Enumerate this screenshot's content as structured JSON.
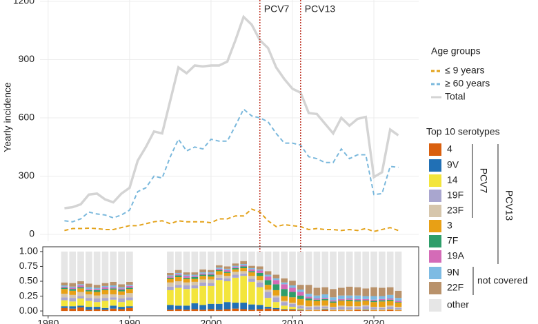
{
  "chart_data": [
    {
      "type": "line",
      "y_label": "Yearly incidence",
      "legend_title": "Age groups",
      "x": [
        1982,
        1983,
        1984,
        1985,
        1986,
        1987,
        1988,
        1989,
        1990,
        1991,
        1992,
        1993,
        1994,
        1995,
        1996,
        1997,
        1998,
        1999,
        2000,
        2001,
        2002,
        2003,
        2004,
        2005,
        2006,
        2007,
        2008,
        2009,
        2010,
        2011,
        2012,
        2013,
        2014,
        2015,
        2016,
        2017,
        2018,
        2019,
        2020,
        2021,
        2022,
        2023
      ],
      "series": [
        {
          "name": "≤ 9 years",
          "color": "#e3a21a",
          "dash": true,
          "values": [
            20,
            30,
            30,
            32,
            30,
            25,
            25,
            35,
            45,
            45,
            55,
            65,
            70,
            55,
            70,
            65,
            65,
            65,
            60,
            80,
            80,
            95,
            95,
            130,
            115,
            70,
            40,
            50,
            45,
            40,
            25,
            30,
            25,
            25,
            20,
            25,
            20,
            30,
            15,
            25,
            35,
            20
          ]
        },
        {
          "name": "≥ 60 years",
          "color": "#7ab8dc",
          "dash": true,
          "values": [
            70,
            65,
            80,
            115,
            105,
            100,
            85,
            100,
            125,
            220,
            240,
            300,
            290,
            400,
            490,
            430,
            450,
            440,
            490,
            480,
            480,
            560,
            645,
            610,
            600,
            580,
            520,
            470,
            470,
            460,
            400,
            390,
            370,
            370,
            440,
            390,
            410,
            410,
            205,
            210,
            350,
            345
          ]
        },
        {
          "name": "Total",
          "color": "#d4d4d4",
          "dash": false,
          "values": [
            135,
            140,
            155,
            205,
            210,
            180,
            165,
            210,
            240,
            380,
            450,
            530,
            520,
            690,
            860,
            830,
            870,
            865,
            870,
            870,
            890,
            1000,
            1120,
            1080,
            1000,
            960,
            860,
            800,
            750,
            730,
            625,
            620,
            570,
            520,
            600,
            560,
            595,
            605,
            295,
            320,
            540,
            510
          ]
        }
      ],
      "xlim": [
        1979,
        2025.5
      ],
      "ylim": [
        0,
        1200
      ],
      "yticks": [
        0,
        300,
        600,
        900,
        1200
      ],
      "xticks": [
        1980,
        1990,
        2000,
        2010,
        2020
      ],
      "grid": true,
      "vlines": [
        {
          "x": 2006,
          "label": "PCV7",
          "color": "#c0392b"
        },
        {
          "x": 2011,
          "label": "PCV13",
          "color": "#c0392b"
        }
      ]
    },
    {
      "type": "stacked_bar",
      "legend_title": "Top 10 serotypes",
      "x": [
        1982,
        1983,
        1984,
        1985,
        1986,
        1987,
        1988,
        1989,
        1990,
        1995,
        1996,
        1997,
        1998,
        1999,
        2000,
        2001,
        2002,
        2003,
        2004,
        2005,
        2006,
        2007,
        2008,
        2009,
        2010,
        2011,
        2012,
        2013,
        2014,
        2015,
        2016,
        2017,
        2018,
        2019,
        2020,
        2021,
        2022,
        2023
      ],
      "series": [
        {
          "name": "4",
          "color": "#d95f0e",
          "values": [
            0.05,
            0.04,
            0.06,
            0.02,
            0.03,
            0.02,
            0.04,
            0.03,
            0.05,
            0.02,
            0.03,
            0.02,
            0.03,
            0.02,
            0.03,
            0.02,
            0.03,
            0.04,
            0.03,
            0.02,
            0.03,
            0.04,
            0.03,
            0.02,
            0.02,
            0.01,
            0.01,
            0.01,
            0.02,
            0.01,
            0.01,
            0.01,
            0.02,
            0.01,
            0.01,
            0.01,
            0.02,
            0.01
          ]
        },
        {
          "name": "9V",
          "color": "#2170b5",
          "values": [
            0.03,
            0.04,
            0.03,
            0.05,
            0.04,
            0.03,
            0.05,
            0.04,
            0.03,
            0.08,
            0.06,
            0.07,
            0.1,
            0.08,
            0.09,
            0.1,
            0.12,
            0.1,
            0.11,
            0.09,
            0.07,
            0.03,
            0.02,
            0.01,
            0.01,
            0.01,
            0,
            0,
            0.01,
            0,
            0,
            0,
            0,
            0.01,
            0,
            0,
            0,
            0
          ]
        },
        {
          "name": "14",
          "color": "#f3e53c",
          "values": [
            0.1,
            0.08,
            0.12,
            0.1,
            0.08,
            0.12,
            0.1,
            0.08,
            0.1,
            0.25,
            0.3,
            0.28,
            0.25,
            0.32,
            0.3,
            0.4,
            0.35,
            0.42,
            0.45,
            0.38,
            0.3,
            0.15,
            0.1,
            0.06,
            0.04,
            0.02,
            0.01,
            0.01,
            0.01,
            0.01,
            0.01,
            0.01,
            0.01,
            0.01,
            0.01,
            0.01,
            0.01,
            0.01
          ]
        },
        {
          "name": "19F",
          "color": "#a9a6cf",
          "values": [
            0.05,
            0.06,
            0.04,
            0.05,
            0.06,
            0.05,
            0.04,
            0.06,
            0.05,
            0.06,
            0.05,
            0.06,
            0.05,
            0.06,
            0.05,
            0.04,
            0.05,
            0.05,
            0.04,
            0.05,
            0.08,
            0.1,
            0.08,
            0.06,
            0.05,
            0.04,
            0.04,
            0.05,
            0.03,
            0.04,
            0.05,
            0.04,
            0.03,
            0.05,
            0.04,
            0.03,
            0.04,
            0.03
          ]
        },
        {
          "name": "23F",
          "color": "#d6c6ac",
          "values": [
            0.06,
            0.05,
            0.07,
            0.06,
            0.05,
            0.06,
            0.05,
            0.06,
            0.07,
            0.07,
            0.06,
            0.05,
            0.06,
            0.05,
            0.06,
            0.05,
            0.04,
            0.05,
            0.04,
            0.05,
            0.04,
            0.04,
            0.03,
            0.02,
            0.02,
            0.02,
            0.02,
            0.02,
            0.02,
            0.01,
            0.02,
            0.02,
            0.02,
            0.02,
            0.01,
            0.02,
            0.02,
            0.02
          ]
        },
        {
          "name": "3",
          "color": "#e8a015",
          "values": [
            0.08,
            0.07,
            0.06,
            0.05,
            0.06,
            0.07,
            0.08,
            0.06,
            0.07,
            0.06,
            0.07,
            0.06,
            0.05,
            0.06,
            0.05,
            0.06,
            0.05,
            0.04,
            0.05,
            0.06,
            0.07,
            0.08,
            0.09,
            0.08,
            0.09,
            0.1,
            0.1,
            0.08,
            0.09,
            0.07,
            0.08,
            0.09,
            0.08,
            0.07,
            0.08,
            0.09,
            0.08,
            0.07
          ]
        },
        {
          "name": "7F",
          "color": "#2e9e6a",
          "values": [
            0.02,
            0.03,
            0.02,
            0.02,
            0.03,
            0.02,
            0.02,
            0.03,
            0.02,
            0.02,
            0.03,
            0.02,
            0.03,
            0.02,
            0.03,
            0.02,
            0.02,
            0.02,
            0.03,
            0.02,
            0.05,
            0.08,
            0.1,
            0.12,
            0.09,
            0.06,
            0.03,
            0.02,
            0.02,
            0.02,
            0.01,
            0.02,
            0.02,
            0.01,
            0.02,
            0.02,
            0.02,
            0.01
          ]
        },
        {
          "name": "19A",
          "color": "#d46bb7",
          "values": [
            0.02,
            0.02,
            0.03,
            0.02,
            0.02,
            0.03,
            0.02,
            0.02,
            0.03,
            0.02,
            0.02,
            0.03,
            0.02,
            0.02,
            0.02,
            0.02,
            0.03,
            0.02,
            0.02,
            0.03,
            0.04,
            0.06,
            0.07,
            0.08,
            0.07,
            0.06,
            0.03,
            0.02,
            0.02,
            0.02,
            0.02,
            0.02,
            0.02,
            0.02,
            0.02,
            0.02,
            0.02,
            0.02
          ]
        },
        {
          "name": "9N",
          "color": "#7dbbe3",
          "values": [
            0.02,
            0.02,
            0.02,
            0.03,
            0.02,
            0.02,
            0.03,
            0.02,
            0.02,
            0.02,
            0.02,
            0.02,
            0.02,
            0.02,
            0.02,
            0.02,
            0.02,
            0.02,
            0.02,
            0.02,
            0.02,
            0.03,
            0.03,
            0.03,
            0.04,
            0.04,
            0.05,
            0.05,
            0.06,
            0.05,
            0.06,
            0.05,
            0.06,
            0.05,
            0.06,
            0.05,
            0.06,
            0.05
          ]
        },
        {
          "name": "22F",
          "color": "#b9926b",
          "values": [
            0.05,
            0.06,
            0.05,
            0.06,
            0.05,
            0.05,
            0.06,
            0.05,
            0.05,
            0.04,
            0.05,
            0.04,
            0.04,
            0.05,
            0.04,
            0.04,
            0.04,
            0.04,
            0.05,
            0.04,
            0.05,
            0.06,
            0.06,
            0.07,
            0.08,
            0.08,
            0.15,
            0.13,
            0.12,
            0.14,
            0.13,
            0.15,
            0.14,
            0.13,
            0.15,
            0.14,
            0.13,
            0.12
          ]
        },
        {
          "name": "other",
          "color": "#e6e6e6",
          "values": [
            0.52,
            0.53,
            0.5,
            0.54,
            0.56,
            0.53,
            0.51,
            0.55,
            0.51,
            0.36,
            0.31,
            0.35,
            0.35,
            0.3,
            0.31,
            0.23,
            0.25,
            0.2,
            0.16,
            0.24,
            0.25,
            0.33,
            0.39,
            0.45,
            0.49,
            0.56,
            0.56,
            0.61,
            0.6,
            0.63,
            0.61,
            0.59,
            0.6,
            0.62,
            0.6,
            0.61,
            0.6,
            0.66
          ]
        }
      ],
      "xlim": [
        1979,
        2025.5
      ],
      "ylim": [
        -0.08,
        1.08
      ],
      "yticks": [
        {
          "value": 0,
          "label": "0.00"
        },
        {
          "value": 0.25,
          "label": "0.25"
        },
        {
          "value": 0.5,
          "label": "0.50"
        },
        {
          "value": 0.75,
          "label": "0.75"
        },
        {
          "value": 1,
          "label": "1.00"
        }
      ],
      "xticks": [
        1980,
        1990,
        2000,
        2010,
        2020
      ],
      "series_groups": [
        {
          "label": "PCV7"
        },
        {
          "label": "PCV13"
        },
        {
          "label": "not covered"
        }
      ]
    }
  ]
}
